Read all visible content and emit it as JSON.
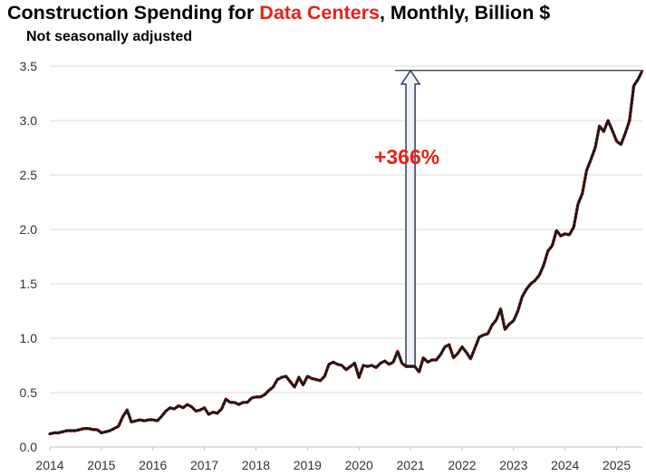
{
  "title": {
    "prefix": "Construction Spending for ",
    "highlight": "Data Centers",
    "suffix": ", Monthly, Billion $"
  },
  "subtitle": "Not seasonally adjusted",
  "colors": {
    "highlight": "#e8211b",
    "line": "#ff0000",
    "dots": "#1a1a1a",
    "grid": "#d9d9d9",
    "arrow_fill": "#f2f2f2",
    "arrow_stroke": "#2f3f5f",
    "annotation": "#e8211b"
  },
  "chart_data": {
    "type": "line",
    "title": "Construction Spending for Data Centers, Monthly, Billion $",
    "subtitle": "Not seasonally adjusted",
    "xlabel": "",
    "ylabel": "",
    "xlim": [
      2014,
      2025.5
    ],
    "ylim": [
      0,
      3.5
    ],
    "grid": "horizontal",
    "legend": "none",
    "x_ticks": [
      "2014",
      "2015",
      "2016",
      "2017",
      "2018",
      "2019",
      "2020",
      "2021",
      "2022",
      "2023",
      "2024",
      "2025"
    ],
    "y_ticks": [
      "0.0",
      "0.5",
      "1.0",
      "1.5",
      "2.0",
      "2.5",
      "3.0",
      "3.5"
    ],
    "series": [
      {
        "name": "Data Centers",
        "start": "2014-01",
        "frequency": "monthly",
        "values": [
          0.12,
          0.13,
          0.13,
          0.14,
          0.15,
          0.15,
          0.15,
          0.16,
          0.17,
          0.17,
          0.16,
          0.16,
          0.13,
          0.14,
          0.15,
          0.17,
          0.19,
          0.28,
          0.34,
          0.23,
          0.24,
          0.25,
          0.24,
          0.25,
          0.25,
          0.24,
          0.28,
          0.33,
          0.36,
          0.35,
          0.38,
          0.36,
          0.39,
          0.37,
          0.33,
          0.34,
          0.36,
          0.3,
          0.32,
          0.31,
          0.35,
          0.44,
          0.41,
          0.41,
          0.39,
          0.41,
          0.41,
          0.45,
          0.46,
          0.46,
          0.48,
          0.52,
          0.55,
          0.62,
          0.64,
          0.65,
          0.6,
          0.55,
          0.64,
          0.57,
          0.65,
          0.63,
          0.62,
          0.61,
          0.65,
          0.76,
          0.78,
          0.76,
          0.75,
          0.71,
          0.74,
          0.77,
          0.64,
          0.75,
          0.74,
          0.75,
          0.73,
          0.77,
          0.79,
          0.76,
          0.78,
          0.88,
          0.77,
          0.74,
          0.74,
          0.74,
          0.69,
          0.82,
          0.78,
          0.8,
          0.8,
          0.85,
          0.92,
          0.94,
          0.82,
          0.86,
          0.92,
          0.87,
          0.81,
          0.91,
          1.01,
          1.03,
          1.04,
          1.12,
          1.17,
          1.27,
          1.08,
          1.13,
          1.16,
          1.25,
          1.38,
          1.45,
          1.5,
          1.53,
          1.58,
          1.67,
          1.8,
          1.85,
          1.99,
          1.94,
          1.96,
          1.95,
          2.02,
          2.23,
          2.33,
          2.54,
          2.64,
          2.75,
          2.95,
          2.9,
          3.0,
          2.91,
          2.81,
          2.78,
          2.88,
          3.0,
          3.32,
          3.38,
          3.46
        ]
      }
    ],
    "annotations": [
      {
        "text": "+366%",
        "type": "arrow",
        "x": 2021.0,
        "from_y": 0.75,
        "to_y": 3.46
      }
    ],
    "reference_line": {
      "y": 3.46,
      "x_start": 2020.7,
      "x_end": 2025.5
    }
  }
}
